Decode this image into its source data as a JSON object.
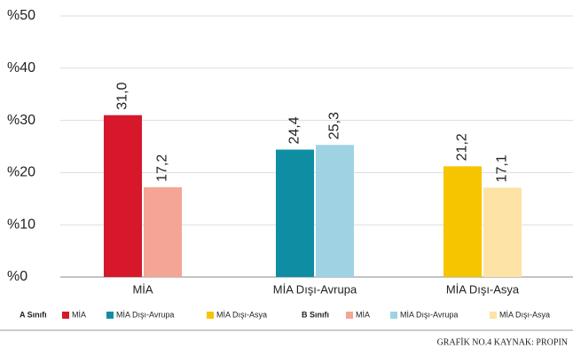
{
  "chart_data": {
    "type": "bar",
    "categories": [
      "MİA",
      "MİA Dışı-Avrupa",
      "MİA Dışı-Asya"
    ],
    "series": [
      {
        "name": "A Sınıfı",
        "values": [
          31.0,
          24.4,
          21.2
        ],
        "value_labels": [
          "31,0",
          "24,4",
          "21,2"
        ],
        "colors": [
          "#d7182a",
          "#0f8ea3",
          "#f7c400"
        ],
        "legend": [
          "MİA",
          "MİA Dışı-Avrupa",
          "MİA Dışı-Asya"
        ]
      },
      {
        "name": "B Sınıfı",
        "values": [
          17.2,
          25.3,
          17.1
        ],
        "value_labels": [
          "17,2",
          "25,3",
          "17,1"
        ],
        "colors": [
          "#f4a596",
          "#9fd3e3",
          "#fde3a5"
        ],
        "legend": [
          "MİA",
          "MİA Dışı-Avrupa",
          "MİA Dışı-Asya"
        ]
      }
    ],
    "ylim": [
      0,
      50
    ],
    "yticks": [
      {
        "value": 0,
        "label": "%0"
      },
      {
        "value": 10,
        "label": "%10"
      },
      {
        "value": 20,
        "label": "%20"
      },
      {
        "value": 30,
        "label": "%30"
      },
      {
        "value": 40,
        "label": "%40"
      },
      {
        "value": 50,
        "label": "%50"
      }
    ],
    "grid": true,
    "footer": "GRAFİK NO.4 KAYNAK: PROPIN"
  }
}
